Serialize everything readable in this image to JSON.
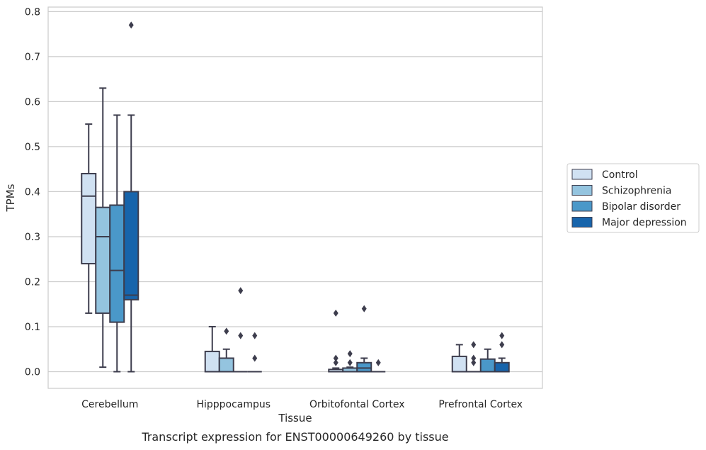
{
  "chart_data": {
    "type": "box",
    "caption": "Transcript expression for ENST00000649260 by tissue",
    "xlabel": "Tissue",
    "ylabel": "TPMs",
    "ylim": [
      -0.037,
      0.81
    ],
    "yticks": [
      0.0,
      0.1,
      0.2,
      0.3,
      0.4,
      0.5,
      0.6,
      0.7,
      0.8
    ],
    "ytick_labels": [
      "0.0",
      "0.1",
      "0.2",
      "0.3",
      "0.4",
      "0.5",
      "0.6",
      "0.7",
      "0.8"
    ],
    "categories": [
      "Cerebellum",
      "Hipppocampus",
      "Orbitofontal Cortex",
      "Prefrontal Cortex"
    ],
    "grid": "horizontal",
    "legend_position": "right",
    "series": [
      {
        "name": "Control",
        "color": "#d0e1f2",
        "boxes": [
          {
            "q1": 0.24,
            "median": 0.39,
            "q3": 0.44,
            "whisker_low": 0.13,
            "whisker_high": 0.55,
            "outliers": []
          },
          {
            "q1": 0.0,
            "median": 0.0,
            "q3": 0.045,
            "whisker_low": 0.0,
            "whisker_high": 0.1,
            "outliers": []
          },
          {
            "q1": 0.0,
            "median": 0.0,
            "q3": 0.005,
            "whisker_low": 0.0,
            "whisker_high": 0.008,
            "outliers": [
              0.02,
              0.03,
              0.13
            ]
          },
          {
            "q1": 0.0,
            "median": 0.0,
            "q3": 0.034,
            "whisker_low": 0.0,
            "whisker_high": 0.06,
            "outliers": []
          }
        ]
      },
      {
        "name": "Schizophrenia",
        "color": "#94c4df",
        "boxes": [
          {
            "q1": 0.13,
            "median": 0.3,
            "q3": 0.365,
            "whisker_low": 0.01,
            "whisker_high": 0.63,
            "outliers": []
          },
          {
            "q1": 0.0,
            "median": 0.0,
            "q3": 0.03,
            "whisker_low": 0.0,
            "whisker_high": 0.05,
            "outliers": [
              0.09
            ]
          },
          {
            "q1": 0.0,
            "median": 0.0,
            "q3": 0.008,
            "whisker_low": 0.0,
            "whisker_high": 0.01,
            "outliers": [
              0.02,
              0.04
            ]
          },
          {
            "q1": 0.0,
            "median": 0.0,
            "q3": 0.0,
            "whisker_low": 0.0,
            "whisker_high": 0.0,
            "outliers": [
              0.02,
              0.03,
              0.06
            ]
          }
        ]
      },
      {
        "name": "Bipolar disorder",
        "color": "#4a98c9",
        "boxes": [
          {
            "q1": 0.11,
            "median": 0.225,
            "q3": 0.37,
            "whisker_low": 0.0,
            "whisker_high": 0.57,
            "outliers": []
          },
          {
            "q1": 0.0,
            "median": 0.0,
            "q3": 0.0,
            "whisker_low": 0.0,
            "whisker_high": 0.0,
            "outliers": [
              0.08,
              0.18
            ]
          },
          {
            "q1": 0.0,
            "median": 0.008,
            "q3": 0.02,
            "whisker_low": 0.0,
            "whisker_high": 0.03,
            "outliers": [
              0.14
            ]
          },
          {
            "q1": 0.0,
            "median": 0.0,
            "q3": 0.028,
            "whisker_low": 0.0,
            "whisker_high": 0.05,
            "outliers": []
          }
        ]
      },
      {
        "name": "Major depression",
        "color": "#1764ab",
        "boxes": [
          {
            "q1": 0.16,
            "median": 0.17,
            "q3": 0.4,
            "whisker_low": 0.0,
            "whisker_high": 0.57,
            "outliers": [
              0.77
            ]
          },
          {
            "q1": 0.0,
            "median": 0.0,
            "q3": 0.0,
            "whisker_low": 0.0,
            "whisker_high": 0.0,
            "outliers": [
              0.03,
              0.08
            ]
          },
          {
            "q1": 0.0,
            "median": 0.0,
            "q3": 0.0,
            "whisker_low": 0.0,
            "whisker_high": 0.0,
            "outliers": [
              0.02
            ]
          },
          {
            "q1": 0.0,
            "median": 0.0,
            "q3": 0.02,
            "whisker_low": 0.0,
            "whisker_high": 0.03,
            "outliers": [
              0.06,
              0.08
            ]
          }
        ]
      }
    ]
  }
}
